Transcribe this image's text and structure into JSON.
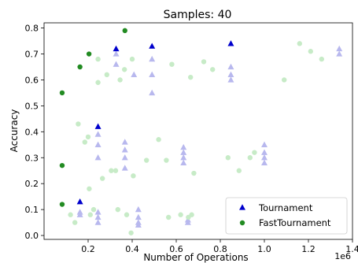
{
  "chart_data": {
    "type": "scatter",
    "title": "Samples: 40",
    "xlabel": "Number of Operations",
    "ylabel": "Accuracy",
    "x_offset_label": "1e6",
    "xlim": [
      0.0,
      1.4
    ],
    "ylim": [
      -0.015,
      0.82
    ],
    "x_ticks": [
      0.2,
      0.4,
      0.6,
      0.8,
      1.0,
      1.2,
      1.4
    ],
    "x_tick_labels": [
      "0.2",
      "0.4",
      "0.6",
      "0.8",
      "1.0",
      "1.2",
      "1.4"
    ],
    "y_ticks": [
      0.0,
      0.1,
      0.2,
      0.3,
      0.4,
      0.5,
      0.6,
      0.7,
      0.8
    ],
    "y_tick_labels": [
      "0.0",
      "0.1",
      "0.2",
      "0.3",
      "0.4",
      "0.5",
      "0.6",
      "0.7",
      "0.8"
    ],
    "legend_position": "lower-right",
    "series": [
      {
        "name": "Tournament",
        "marker": "triangle",
        "color": "#0000cc",
        "points": [
          {
            "x": 0.163,
            "y": 0.13
          },
          {
            "x": 0.245,
            "y": 0.42
          },
          {
            "x": 0.327,
            "y": 0.72
          },
          {
            "x": 0.49,
            "y": 0.73
          },
          {
            "x": 0.848,
            "y": 0.74
          }
        ]
      },
      {
        "name": "FastTournament",
        "marker": "circle",
        "color": "#228b22",
        "points": [
          {
            "x": 0.082,
            "y": 0.12
          },
          {
            "x": 0.082,
            "y": 0.27
          },
          {
            "x": 0.082,
            "y": 0.55
          },
          {
            "x": 0.163,
            "y": 0.65
          },
          {
            "x": 0.204,
            "y": 0.7
          },
          {
            "x": 0.367,
            "y": 0.79
          }
        ]
      },
      {
        "name": "",
        "marker": "triangle",
        "color": "#b8b8ee",
        "points": [
          {
            "x": 0.163,
            "y": 0.09
          },
          {
            "x": 0.163,
            "y": 0.08
          },
          {
            "x": 0.245,
            "y": 0.09
          },
          {
            "x": 0.245,
            "y": 0.07
          },
          {
            "x": 0.245,
            "y": 0.05
          },
          {
            "x": 0.245,
            "y": 0.39
          },
          {
            "x": 0.245,
            "y": 0.35
          },
          {
            "x": 0.245,
            "y": 0.3
          },
          {
            "x": 0.327,
            "y": 0.7
          },
          {
            "x": 0.327,
            "y": 0.66
          },
          {
            "x": 0.367,
            "y": 0.36
          },
          {
            "x": 0.367,
            "y": 0.33
          },
          {
            "x": 0.367,
            "y": 0.3
          },
          {
            "x": 0.367,
            "y": 0.26
          },
          {
            "x": 0.408,
            "y": 0.62
          },
          {
            "x": 0.428,
            "y": 0.1
          },
          {
            "x": 0.428,
            "y": 0.07
          },
          {
            "x": 0.428,
            "y": 0.05
          },
          {
            "x": 0.428,
            "y": 0.04
          },
          {
            "x": 0.49,
            "y": 0.68
          },
          {
            "x": 0.49,
            "y": 0.62
          },
          {
            "x": 0.49,
            "y": 0.55
          },
          {
            "x": 0.633,
            "y": 0.34
          },
          {
            "x": 0.633,
            "y": 0.32
          },
          {
            "x": 0.633,
            "y": 0.3
          },
          {
            "x": 0.633,
            "y": 0.28
          },
          {
            "x": 0.653,
            "y": 0.06
          },
          {
            "x": 0.653,
            "y": 0.05
          },
          {
            "x": 0.848,
            "y": 0.65
          },
          {
            "x": 0.848,
            "y": 0.62
          },
          {
            "x": 0.848,
            "y": 0.6
          },
          {
            "x": 1.0,
            "y": 0.35
          },
          {
            "x": 1.0,
            "y": 0.32
          },
          {
            "x": 1.0,
            "y": 0.3
          },
          {
            "x": 1.0,
            "y": 0.28
          },
          {
            "x": 1.34,
            "y": 0.72
          },
          {
            "x": 1.34,
            "y": 0.7
          }
        ]
      },
      {
        "name": "",
        "marker": "circle",
        "color": "#c7ebc7",
        "points": [
          {
            "x": 0.12,
            "y": 0.08
          },
          {
            "x": 0.14,
            "y": 0.05
          },
          {
            "x": 0.155,
            "y": 0.43
          },
          {
            "x": 0.185,
            "y": 0.36
          },
          {
            "x": 0.2,
            "y": 0.38
          },
          {
            "x": 0.205,
            "y": 0.18
          },
          {
            "x": 0.21,
            "y": 0.08
          },
          {
            "x": 0.225,
            "y": 0.1
          },
          {
            "x": 0.245,
            "y": 0.68
          },
          {
            "x": 0.245,
            "y": 0.59
          },
          {
            "x": 0.265,
            "y": 0.22
          },
          {
            "x": 0.285,
            "y": 0.62
          },
          {
            "x": 0.305,
            "y": 0.25
          },
          {
            "x": 0.325,
            "y": 0.25
          },
          {
            "x": 0.335,
            "y": 0.1
          },
          {
            "x": 0.345,
            "y": 0.6
          },
          {
            "x": 0.365,
            "y": 0.64
          },
          {
            "x": 0.375,
            "y": 0.08
          },
          {
            "x": 0.395,
            "y": 0.01
          },
          {
            "x": 0.4,
            "y": 0.68
          },
          {
            "x": 0.405,
            "y": 0.23
          },
          {
            "x": 0.465,
            "y": 0.29
          },
          {
            "x": 0.52,
            "y": 0.37
          },
          {
            "x": 0.555,
            "y": 0.29
          },
          {
            "x": 0.565,
            "y": 0.07
          },
          {
            "x": 0.58,
            "y": 0.66
          },
          {
            "x": 0.62,
            "y": 0.08
          },
          {
            "x": 0.655,
            "y": 0.07
          },
          {
            "x": 0.665,
            "y": 0.61
          },
          {
            "x": 0.67,
            "y": 0.08
          },
          {
            "x": 0.68,
            "y": 0.24
          },
          {
            "x": 0.725,
            "y": 0.67
          },
          {
            "x": 0.765,
            "y": 0.64
          },
          {
            "x": 0.835,
            "y": 0.3
          },
          {
            "x": 0.885,
            "y": 0.25
          },
          {
            "x": 0.935,
            "y": 0.3
          },
          {
            "x": 0.955,
            "y": 0.32
          },
          {
            "x": 1.09,
            "y": 0.6
          },
          {
            "x": 1.16,
            "y": 0.74
          },
          {
            "x": 1.21,
            "y": 0.71
          },
          {
            "x": 1.26,
            "y": 0.68
          }
        ]
      }
    ]
  }
}
